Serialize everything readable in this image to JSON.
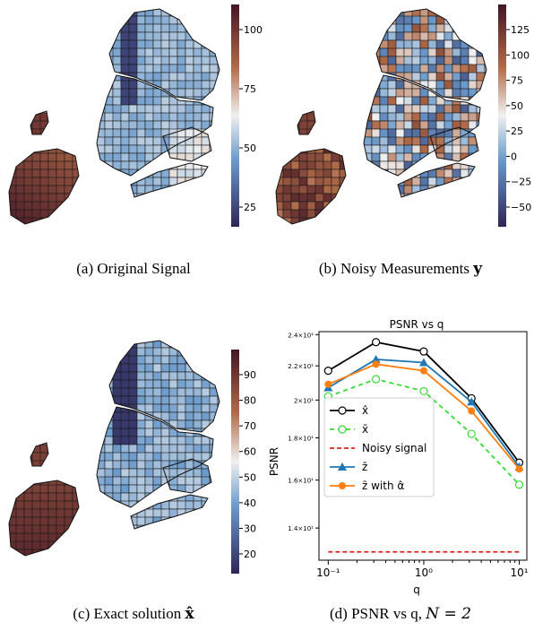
{
  "captions": {
    "a": {
      "prefix": "(a) Original Signal"
    },
    "b": {
      "prefix": "(b) Noisy Measurements ",
      "symbol": "y"
    },
    "c": {
      "prefix": "(c) Exact solution ",
      "symbol": "x̂"
    },
    "d": {
      "prefix": "(d) PSNR vs q, ",
      "math": "N = 2"
    }
  },
  "colorbars": {
    "a": {
      "ticks": [
        "100",
        "75",
        "50",
        "25"
      ]
    },
    "b": {
      "ticks": [
        "125",
        "100",
        "75",
        "50",
        "25",
        "0",
        "−25",
        "−50"
      ]
    },
    "c": {
      "ticks": [
        "90",
        "80",
        "70",
        "60",
        "50",
        "40",
        "30",
        "20"
      ]
    }
  },
  "colors": {
    "cmap_high": "#441525",
    "cmap_midhigh": "#b06a48",
    "cmap_mid": "#f0f0f0",
    "cmap_midlow": "#6a9acb",
    "cmap_low": "#2e2558"
  },
  "chart_data": {
    "type": "line",
    "title": "PSNR vs q",
    "xlabel": "q",
    "ylabel": "PSNR",
    "xscale": "log",
    "yscale": "log",
    "xlim": [
      0.08,
      12
    ],
    "ylim": [
      12.8,
      24.2
    ],
    "x_tick_labels": [
      "10⁻¹",
      "10⁰",
      "10¹"
    ],
    "y_tick_labels": [
      "1.4×10¹",
      "1.6×10¹",
      "1.8×10¹",
      "2×10¹",
      "2.2×10¹",
      "2.4×10¹"
    ],
    "x": [
      0.1,
      0.316,
      1,
      3.16,
      10
    ],
    "series": [
      {
        "name": "x̂",
        "color": "#000000",
        "dash": "",
        "marker": "circle-open",
        "values": [
          21.7,
          23.5,
          22.9,
          20.1,
          16.8
        ]
      },
      {
        "name": "x̄",
        "color": "#33dd33",
        "dash": "5,4",
        "marker": "circle-open",
        "values": [
          20.2,
          21.2,
          20.5,
          18.2,
          15.8
        ]
      },
      {
        "name": "Noisy signal",
        "color": "#dd2222",
        "dash": "5,3",
        "marker": "none",
        "values": [
          13.1,
          13.1,
          13.1,
          13.1,
          13.1
        ]
      },
      {
        "name": "z̄",
        "color": "#1f77b4",
        "dash": "",
        "marker": "triangle",
        "values": [
          20.7,
          22.4,
          22.2,
          19.9,
          16.6
        ]
      },
      {
        "name": "z̄ with α̂",
        "color": "#ff7f0e",
        "dash": "",
        "marker": "circle",
        "values": [
          20.9,
          22.1,
          21.7,
          19.4,
          16.5
        ]
      }
    ],
    "legend_position": "center-left"
  }
}
